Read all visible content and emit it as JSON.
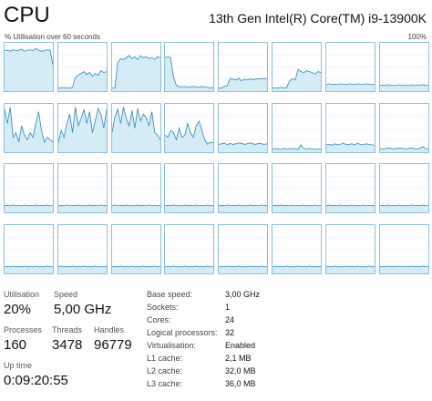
{
  "header": {
    "title": "CPU",
    "processor_name": "13th Gen Intel(R) Core(TM) i9-13900K",
    "graph_caption": "% Utilisation over 60 seconds",
    "graph_max": "100%"
  },
  "graph": {
    "colors": {
      "border": "#8fc1d6",
      "fill": "#d3ecf6",
      "line": "#2e86b3",
      "gridline": "#e3eff5"
    },
    "cores": [
      [
        0.85,
        0.86,
        0.84,
        0.87,
        0.85,
        0.86,
        0.88,
        0.84,
        0.86,
        0.87,
        0.85,
        0.9,
        0.86,
        0.84,
        0.85,
        0.87,
        0.86,
        0.55
      ],
      [
        0.05,
        0.05,
        0.06,
        0.05,
        0.05,
        0.06,
        0.28,
        0.32,
        0.36,
        0.4,
        0.34,
        0.38,
        0.3,
        0.36,
        0.32,
        0.42,
        0.38,
        0.4
      ],
      [
        0.05,
        0.05,
        0.6,
        0.68,
        0.66,
        0.7,
        0.75,
        0.68,
        0.72,
        0.66,
        0.74,
        0.7,
        0.72,
        0.68,
        0.7,
        0.66,
        0.72,
        0.7
      ],
      [
        0.7,
        0.72,
        0.7,
        0.28,
        0.1,
        0.08,
        0.07,
        0.08,
        0.06,
        0.07,
        0.08,
        0.07,
        0.06,
        0.08,
        0.07,
        0.06,
        0.05,
        0.06
      ],
      [
        0.05,
        0.05,
        0.08,
        0.1,
        0.25,
        0.24,
        0.22,
        0.26,
        0.2,
        0.24,
        0.22,
        0.25,
        0.23,
        0.24,
        0.25,
        0.24,
        0.26,
        0.24
      ],
      [
        0.05,
        0.05,
        0.05,
        0.06,
        0.05,
        0.06,
        0.2,
        0.25,
        0.22,
        0.45,
        0.4,
        0.38,
        0.42,
        0.4,
        0.38,
        0.35,
        0.4,
        0.38
      ],
      [
        0.12,
        0.14,
        0.12,
        0.13,
        0.12,
        0.14,
        0.13,
        0.12,
        0.14,
        0.13,
        0.12,
        0.14,
        0.13,
        0.12,
        0.14,
        0.13,
        0.12,
        0.13
      ],
      [
        0.1,
        0.11,
        0.1,
        0.12,
        0.1,
        0.11,
        0.1,
        0.12,
        0.1,
        0.11,
        0.1,
        0.12,
        0.1,
        0.11,
        0.1,
        0.12,
        0.1,
        0.11
      ],
      [
        0.9,
        0.6,
        0.95,
        0.3,
        0.4,
        0.2,
        0.55,
        0.35,
        0.25,
        0.4,
        0.3,
        0.6,
        0.85,
        0.45,
        0.2,
        0.3,
        0.25,
        0.2
      ],
      [
        0.2,
        0.45,
        0.3,
        0.6,
        0.8,
        0.4,
        0.95,
        0.55,
        0.7,
        0.9,
        0.6,
        0.85,
        0.4,
        0.65,
        0.92,
        0.8,
        0.5,
        0.9
      ],
      [
        0.4,
        0.75,
        0.9,
        0.6,
        0.95,
        0.7,
        0.55,
        0.88,
        0.5,
        0.92,
        0.65,
        0.8,
        0.72,
        0.55,
        0.85,
        0.4,
        0.35,
        0.25
      ],
      [
        0.35,
        0.3,
        0.45,
        0.4,
        0.25,
        0.5,
        0.3,
        0.35,
        0.6,
        0.4,
        0.3,
        0.55,
        0.65,
        0.45,
        0.25,
        0.15,
        0.2,
        0.18
      ],
      [
        0.15,
        0.16,
        0.18,
        0.14,
        0.17,
        0.15,
        0.16,
        0.18,
        0.17,
        0.15,
        0.16,
        0.18,
        0.16,
        0.15,
        0.17,
        0.16,
        0.15,
        0.16
      ],
      [
        0.05,
        0.06,
        0.05,
        0.04,
        0.06,
        0.05,
        0.06,
        0.05,
        0.06,
        0.04,
        0.14,
        0.06,
        0.05,
        0.06,
        0.05,
        0.04,
        0.05,
        0.05
      ],
      [
        0.14,
        0.15,
        0.13,
        0.16,
        0.14,
        0.15,
        0.18,
        0.14,
        0.15,
        0.16,
        0.14,
        0.17,
        0.15,
        0.14,
        0.16,
        0.15,
        0.14,
        0.13
      ],
      [
        0.06,
        0.05,
        0.06,
        0.07,
        0.06,
        0.05,
        0.06,
        0.07,
        0.06,
        0.05,
        0.06,
        0.07,
        0.06,
        0.05,
        0.06,
        0.1,
        0.06,
        0.05
      ],
      [
        0.12,
        0.13,
        0.12,
        0.14,
        0.12,
        0.13,
        0.12,
        0.14,
        0.12,
        0.13,
        0.12,
        0.14,
        0.12,
        0.13,
        0.12,
        0.14,
        0.12,
        0.13
      ],
      [
        0.12,
        0.13,
        0.12,
        0.14,
        0.12,
        0.13,
        0.12,
        0.14,
        0.12,
        0.13,
        0.12,
        0.14,
        0.12,
        0.13,
        0.12,
        0.14,
        0.12,
        0.13
      ],
      [
        0.12,
        0.14,
        0.12,
        0.13,
        0.12,
        0.14,
        0.12,
        0.13,
        0.12,
        0.14,
        0.12,
        0.13,
        0.12,
        0.14,
        0.12,
        0.13,
        0.12,
        0.14
      ],
      [
        0.12,
        0.13,
        0.12,
        0.14,
        0.12,
        0.13,
        0.12,
        0.14,
        0.12,
        0.13,
        0.12,
        0.14,
        0.12,
        0.13,
        0.12,
        0.14,
        0.12,
        0.13
      ],
      [
        0.12,
        0.13,
        0.12,
        0.14,
        0.12,
        0.13,
        0.12,
        0.14,
        0.12,
        0.13,
        0.12,
        0.14,
        0.12,
        0.13,
        0.12,
        0.14,
        0.12,
        0.13
      ],
      [
        0.12,
        0.13,
        0.12,
        0.14,
        0.12,
        0.13,
        0.12,
        0.14,
        0.12,
        0.13,
        0.12,
        0.14,
        0.12,
        0.13,
        0.12,
        0.14,
        0.12,
        0.13
      ],
      [
        0.12,
        0.14,
        0.12,
        0.13,
        0.12,
        0.14,
        0.12,
        0.13,
        0.12,
        0.14,
        0.12,
        0.13,
        0.12,
        0.14,
        0.12,
        0.13,
        0.12,
        0.14
      ],
      [
        0.12,
        0.13,
        0.12,
        0.14,
        0.12,
        0.13,
        0.12,
        0.14,
        0.12,
        0.13,
        0.12,
        0.14,
        0.12,
        0.13,
        0.12,
        0.14,
        0.12,
        0.13
      ],
      [
        0.12,
        0.13,
        0.12,
        0.14,
        0.12,
        0.13,
        0.12,
        0.14,
        0.12,
        0.13,
        0.12,
        0.14,
        0.12,
        0.13,
        0.12,
        0.14,
        0.12,
        0.13
      ],
      [
        0.12,
        0.14,
        0.12,
        0.13,
        0.12,
        0.14,
        0.12,
        0.13,
        0.12,
        0.14,
        0.12,
        0.13,
        0.12,
        0.14,
        0.12,
        0.13,
        0.12,
        0.14
      ],
      [
        0.12,
        0.13,
        0.12,
        0.14,
        0.12,
        0.13,
        0.12,
        0.14,
        0.12,
        0.13,
        0.12,
        0.14,
        0.12,
        0.13,
        0.12,
        0.14,
        0.12,
        0.13
      ],
      [
        0.12,
        0.13,
        0.12,
        0.14,
        0.12,
        0.13,
        0.12,
        0.14,
        0.12,
        0.13,
        0.12,
        0.14,
        0.12,
        0.13,
        0.12,
        0.14,
        0.12,
        0.13
      ],
      [
        0.12,
        0.13,
        0.12,
        0.14,
        0.12,
        0.13,
        0.12,
        0.14,
        0.12,
        0.13,
        0.12,
        0.14,
        0.12,
        0.13,
        0.12,
        0.14,
        0.12,
        0.13
      ],
      [
        0.12,
        0.14,
        0.12,
        0.13,
        0.12,
        0.14,
        0.12,
        0.13,
        0.12,
        0.14,
        0.12,
        0.13,
        0.12,
        0.14,
        0.12,
        0.13,
        0.12,
        0.14
      ],
      [
        0.12,
        0.13,
        0.12,
        0.14,
        0.12,
        0.13,
        0.12,
        0.14,
        0.12,
        0.13,
        0.12,
        0.14,
        0.12,
        0.13,
        0.12,
        0.14,
        0.12,
        0.13
      ],
      [
        0.12,
        0.13,
        0.12,
        0.14,
        0.12,
        0.13,
        0.12,
        0.14,
        0.12,
        0.13,
        0.12,
        0.14,
        0.12,
        0.13,
        0.12,
        0.14,
        0.12,
        0.13
      ]
    ]
  },
  "stats": {
    "utilisation": {
      "label": "Utilisation",
      "value": "20%"
    },
    "speed": {
      "label": "Speed",
      "value": "5,00 GHz"
    },
    "processes": {
      "label": "Processes",
      "value": "160"
    },
    "threads": {
      "label": "Threads",
      "value": "3478"
    },
    "handles": {
      "label": "Handles",
      "value": "96779"
    },
    "uptime": {
      "label": "Up time",
      "value": "0:09:20:55"
    }
  },
  "details": [
    {
      "label": "Base speed:",
      "value": "3,00 GHz"
    },
    {
      "label": "Sockets:",
      "value": "1"
    },
    {
      "label": "Cores:",
      "value": "24"
    },
    {
      "label": "Logical processors:",
      "value": "32"
    },
    {
      "label": "Virtualisation:",
      "value": "Enabled"
    },
    {
      "label": "L1 cache:",
      "value": "2,1 MB"
    },
    {
      "label": "L2 cache:",
      "value": "32,0 MB"
    },
    {
      "label": "L3 cache:",
      "value": "36,0 MB"
    }
  ]
}
